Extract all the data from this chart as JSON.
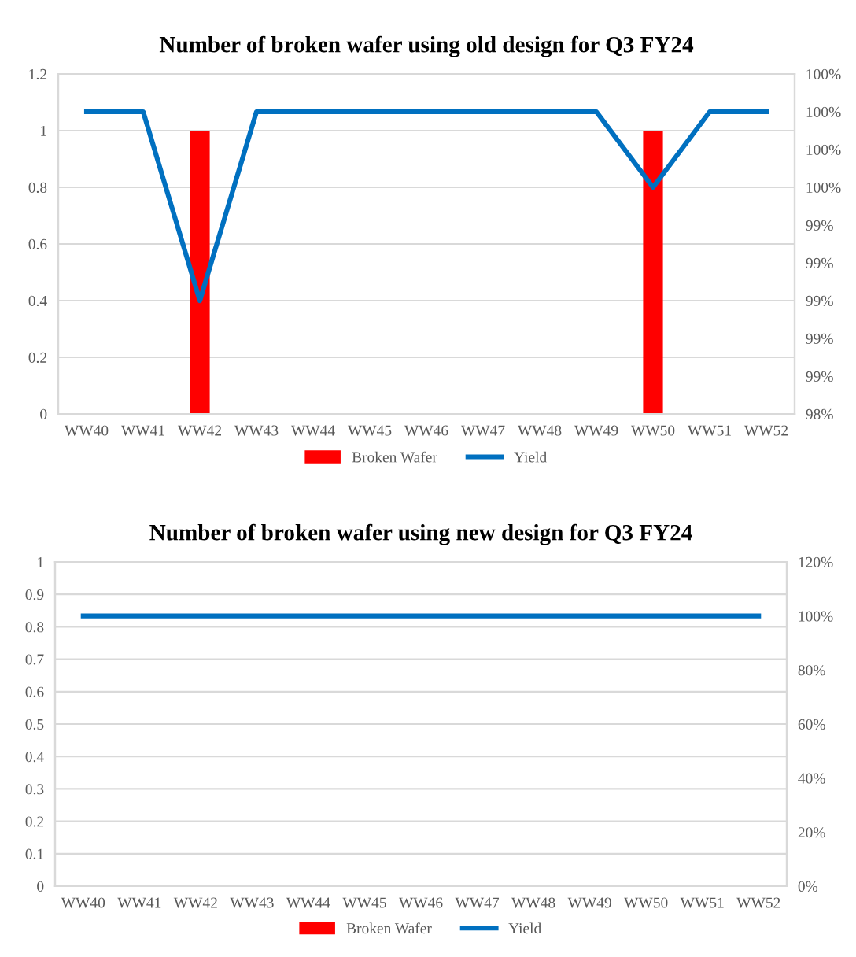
{
  "chart_data": [
    {
      "type": "bar",
      "title": "Number of broken wafer using old design for Q3 FY24",
      "categories": [
        "WW40",
        "WW41",
        "WW42",
        "WW43",
        "WW44",
        "WW45",
        "WW46",
        "WW47",
        "WW48",
        "WW49",
        "WW50",
        "WW51",
        "WW52"
      ],
      "series": [
        {
          "name": "Broken Wafer",
          "color": "#ff0000",
          "values": [
            0,
            0,
            1,
            0,
            0,
            0,
            0,
            0,
            0,
            0,
            1,
            0,
            0
          ]
        },
        {
          "name": "Yield",
          "type": "line",
          "axis": "y2",
          "color": "#0070c0",
          "values": [
            100,
            100,
            99,
            100,
            100,
            100,
            100,
            100,
            100,
            100,
            99.6,
            100,
            100
          ]
        }
      ],
      "ylim": [
        0,
        1.2
      ],
      "yticks": [
        0,
        0.2,
        0.4,
        0.6,
        0.8,
        1,
        1.2
      ],
      "y2lim": [
        98.4,
        100.2
      ],
      "y2ticks": [
        {
          "value": 98.4,
          "label": "98%"
        },
        {
          "value": 98.6,
          "label": "99%"
        },
        {
          "value": 98.8,
          "label": "99%"
        },
        {
          "value": 99.0,
          "label": "99%"
        },
        {
          "value": 99.2,
          "label": "99%"
        },
        {
          "value": 99.4,
          "label": "99%"
        },
        {
          "value": 99.6,
          "label": "100%"
        },
        {
          "value": 99.8,
          "label": "100%"
        },
        {
          "value": 100.0,
          "label": "100%"
        },
        {
          "value": 100.2,
          "label": "100%"
        }
      ],
      "grid": "y",
      "legend": "bottom",
      "marker": "none",
      "line_style": "solid"
    },
    {
      "type": "bar",
      "title": "Number of broken wafer using new design for Q3 FY24",
      "categories": [
        "WW40",
        "WW41",
        "WW42",
        "WW43",
        "WW44",
        "WW45",
        "WW46",
        "WW47",
        "WW48",
        "WW49",
        "WW50",
        "WW51",
        "WW52"
      ],
      "series": [
        {
          "name": "Broken Wafer",
          "color": "#ff0000",
          "values": [
            0,
            0,
            0,
            0,
            0,
            0,
            0,
            0,
            0,
            0,
            0,
            0,
            0
          ]
        },
        {
          "name": "Yield",
          "type": "line",
          "axis": "y2",
          "color": "#0070c0",
          "values": [
            100,
            100,
            100,
            100,
            100,
            100,
            100,
            100,
            100,
            100,
            100,
            100,
            100
          ]
        }
      ],
      "ylim": [
        0,
        1
      ],
      "yticks": [
        0,
        0.1,
        0.2,
        0.3,
        0.4,
        0.5,
        0.6,
        0.7,
        0.8,
        0.9,
        1
      ],
      "y2lim": [
        0,
        120
      ],
      "y2ticks": [
        {
          "value": 0,
          "label": "0%"
        },
        {
          "value": 20,
          "label": "20%"
        },
        {
          "value": 40,
          "label": "40%"
        },
        {
          "value": 60,
          "label": "60%"
        },
        {
          "value": 80,
          "label": "80%"
        },
        {
          "value": 100,
          "label": "100%"
        },
        {
          "value": 120,
          "label": "120%"
        }
      ],
      "grid": "y",
      "legend": "bottom",
      "marker": "none",
      "line_style": "solid"
    }
  ]
}
